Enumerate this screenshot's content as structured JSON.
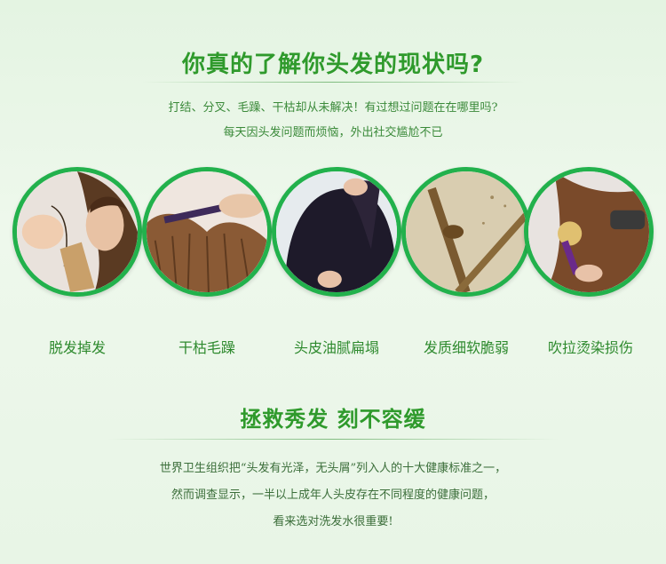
{
  "header": {
    "title": "你真的了解你头发的现状吗?",
    "line1": "打结、分叉、毛躁、干枯却从未解决！有过想过问题在在哪里吗?",
    "line2": "每天因头发问题而烦恼，外出社交尴尬不已"
  },
  "problems": [
    {
      "label": "脱发掉发"
    },
    {
      "label": "干枯毛躁"
    },
    {
      "label": "头皮油腻扁塌"
    },
    {
      "label": "发质细软脆弱"
    },
    {
      "label": "吹拉烫染损伤"
    }
  ],
  "section2": {
    "title": "拯救秀发 刻不容缓",
    "line1": "世界卫生组织把“头发有光泽，无头屑”列入人的十大健康标准之一，",
    "line2": "然而调查显示，一半以上成年人头皮存在不同程度的健康问题，",
    "line3": "看来选对洗发水很重要!"
  },
  "colors": {
    "accent": "#2f9a2c",
    "ring": "#22b14c",
    "background": "#e6f5e4"
  },
  "icons": [
    "hair-loss-photo",
    "dry-frizzy-photo",
    "oily-scalp-photo",
    "weak-hair-photo",
    "styling-damage-photo"
  ]
}
